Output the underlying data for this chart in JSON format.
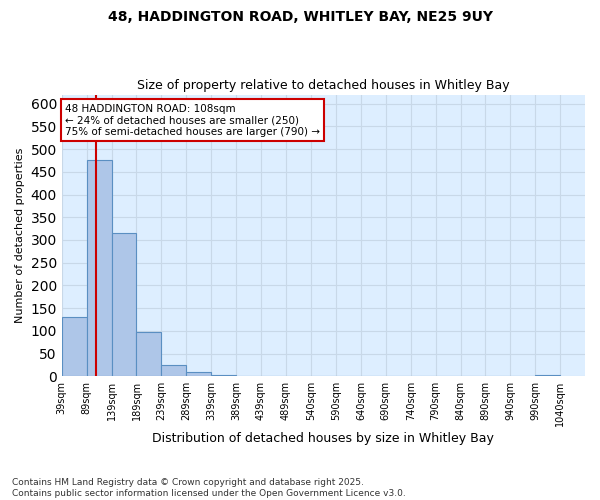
{
  "title_line1": "48, HADDINGTON ROAD, WHITLEY BAY, NE25 9UY",
  "title_line2": "Size of property relative to detached houses in Whitley Bay",
  "xlabel": "Distribution of detached houses by size in Whitley Bay",
  "ylabel": "Number of detached properties",
  "footnote_line1": "Contains HM Land Registry data © Crown copyright and database right 2025.",
  "footnote_line2": "Contains public sector information licensed under the Open Government Licence v3.0.",
  "bin_edges": [
    39,
    89,
    139,
    189,
    239,
    289,
    339,
    389,
    439,
    489,
    540,
    590,
    640,
    690,
    740,
    790,
    840,
    890,
    940,
    990,
    1040
  ],
  "bar_heights": [
    130,
    475,
    315,
    98,
    25,
    10,
    2,
    0,
    0,
    0,
    0,
    0,
    0,
    0,
    0,
    0,
    0,
    0,
    0,
    2
  ],
  "bar_color": "#aec6e8",
  "bar_edge_color": "#5a8fc2",
  "grid_color": "#c8d8e8",
  "background_color": "#ddeeff",
  "red_line_x": 108,
  "red_line_color": "#cc0000",
  "annotation_text": "48 HADDINGTON ROAD: 108sqm\n← 24% of detached houses are smaller (250)\n75% of semi-detached houses are larger (790) →",
  "annotation_box_edge": "#cc0000",
  "ylim": [
    0,
    620
  ],
  "yticks": [
    0,
    50,
    100,
    150,
    200,
    250,
    300,
    350,
    400,
    450,
    500,
    550,
    600
  ],
  "tick_labels": [
    "39sqm",
    "89sqm",
    "139sqm",
    "189sqm",
    "239sqm",
    "289sqm",
    "339sqm",
    "389sqm",
    "439sqm",
    "489sqm",
    "540sqm",
    "590sqm",
    "640sqm",
    "690sqm",
    "740sqm",
    "790sqm",
    "840sqm",
    "890sqm",
    "940sqm",
    "990sqm",
    "1040sqm"
  ]
}
